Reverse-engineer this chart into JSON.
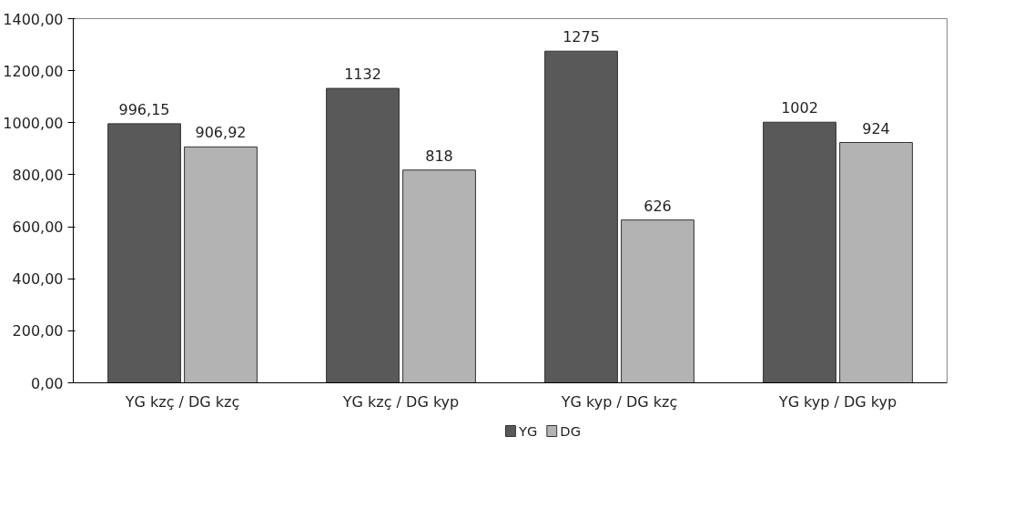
{
  "chart_data": {
    "type": "bar",
    "categories": [
      "YG kzç / DG kzç",
      "YG kzç / DG kyp",
      "YG kyp / DG kzç",
      "YG kyp / DG kyp"
    ],
    "series": [
      {
        "name": "YG",
        "color": "#595959",
        "values": [
          996.15,
          1132,
          1275,
          1002
        ],
        "value_labels": [
          "996,15",
          "1132",
          "1275",
          "1002"
        ]
      },
      {
        "name": "DG",
        "color": "#b3b3b3",
        "values": [
          906.92,
          818,
          626,
          924
        ],
        "value_labels": [
          "906,92",
          "818",
          "626",
          "924"
        ]
      }
    ],
    "ylim": [
      0,
      1400
    ],
    "yticks": [
      {
        "value": 0,
        "label": "0,00"
      },
      {
        "value": 200,
        "label": "200,00"
      },
      {
        "value": 400,
        "label": "400,00"
      },
      {
        "value": 600,
        "label": "600,00"
      },
      {
        "value": 800,
        "label": "800,00"
      },
      {
        "value": 1000,
        "label": "1000,00"
      },
      {
        "value": 1200,
        "label": "1200,00"
      },
      {
        "value": 1400,
        "label": "1400,00"
      }
    ],
    "grid": false,
    "legend": "bottom"
  }
}
